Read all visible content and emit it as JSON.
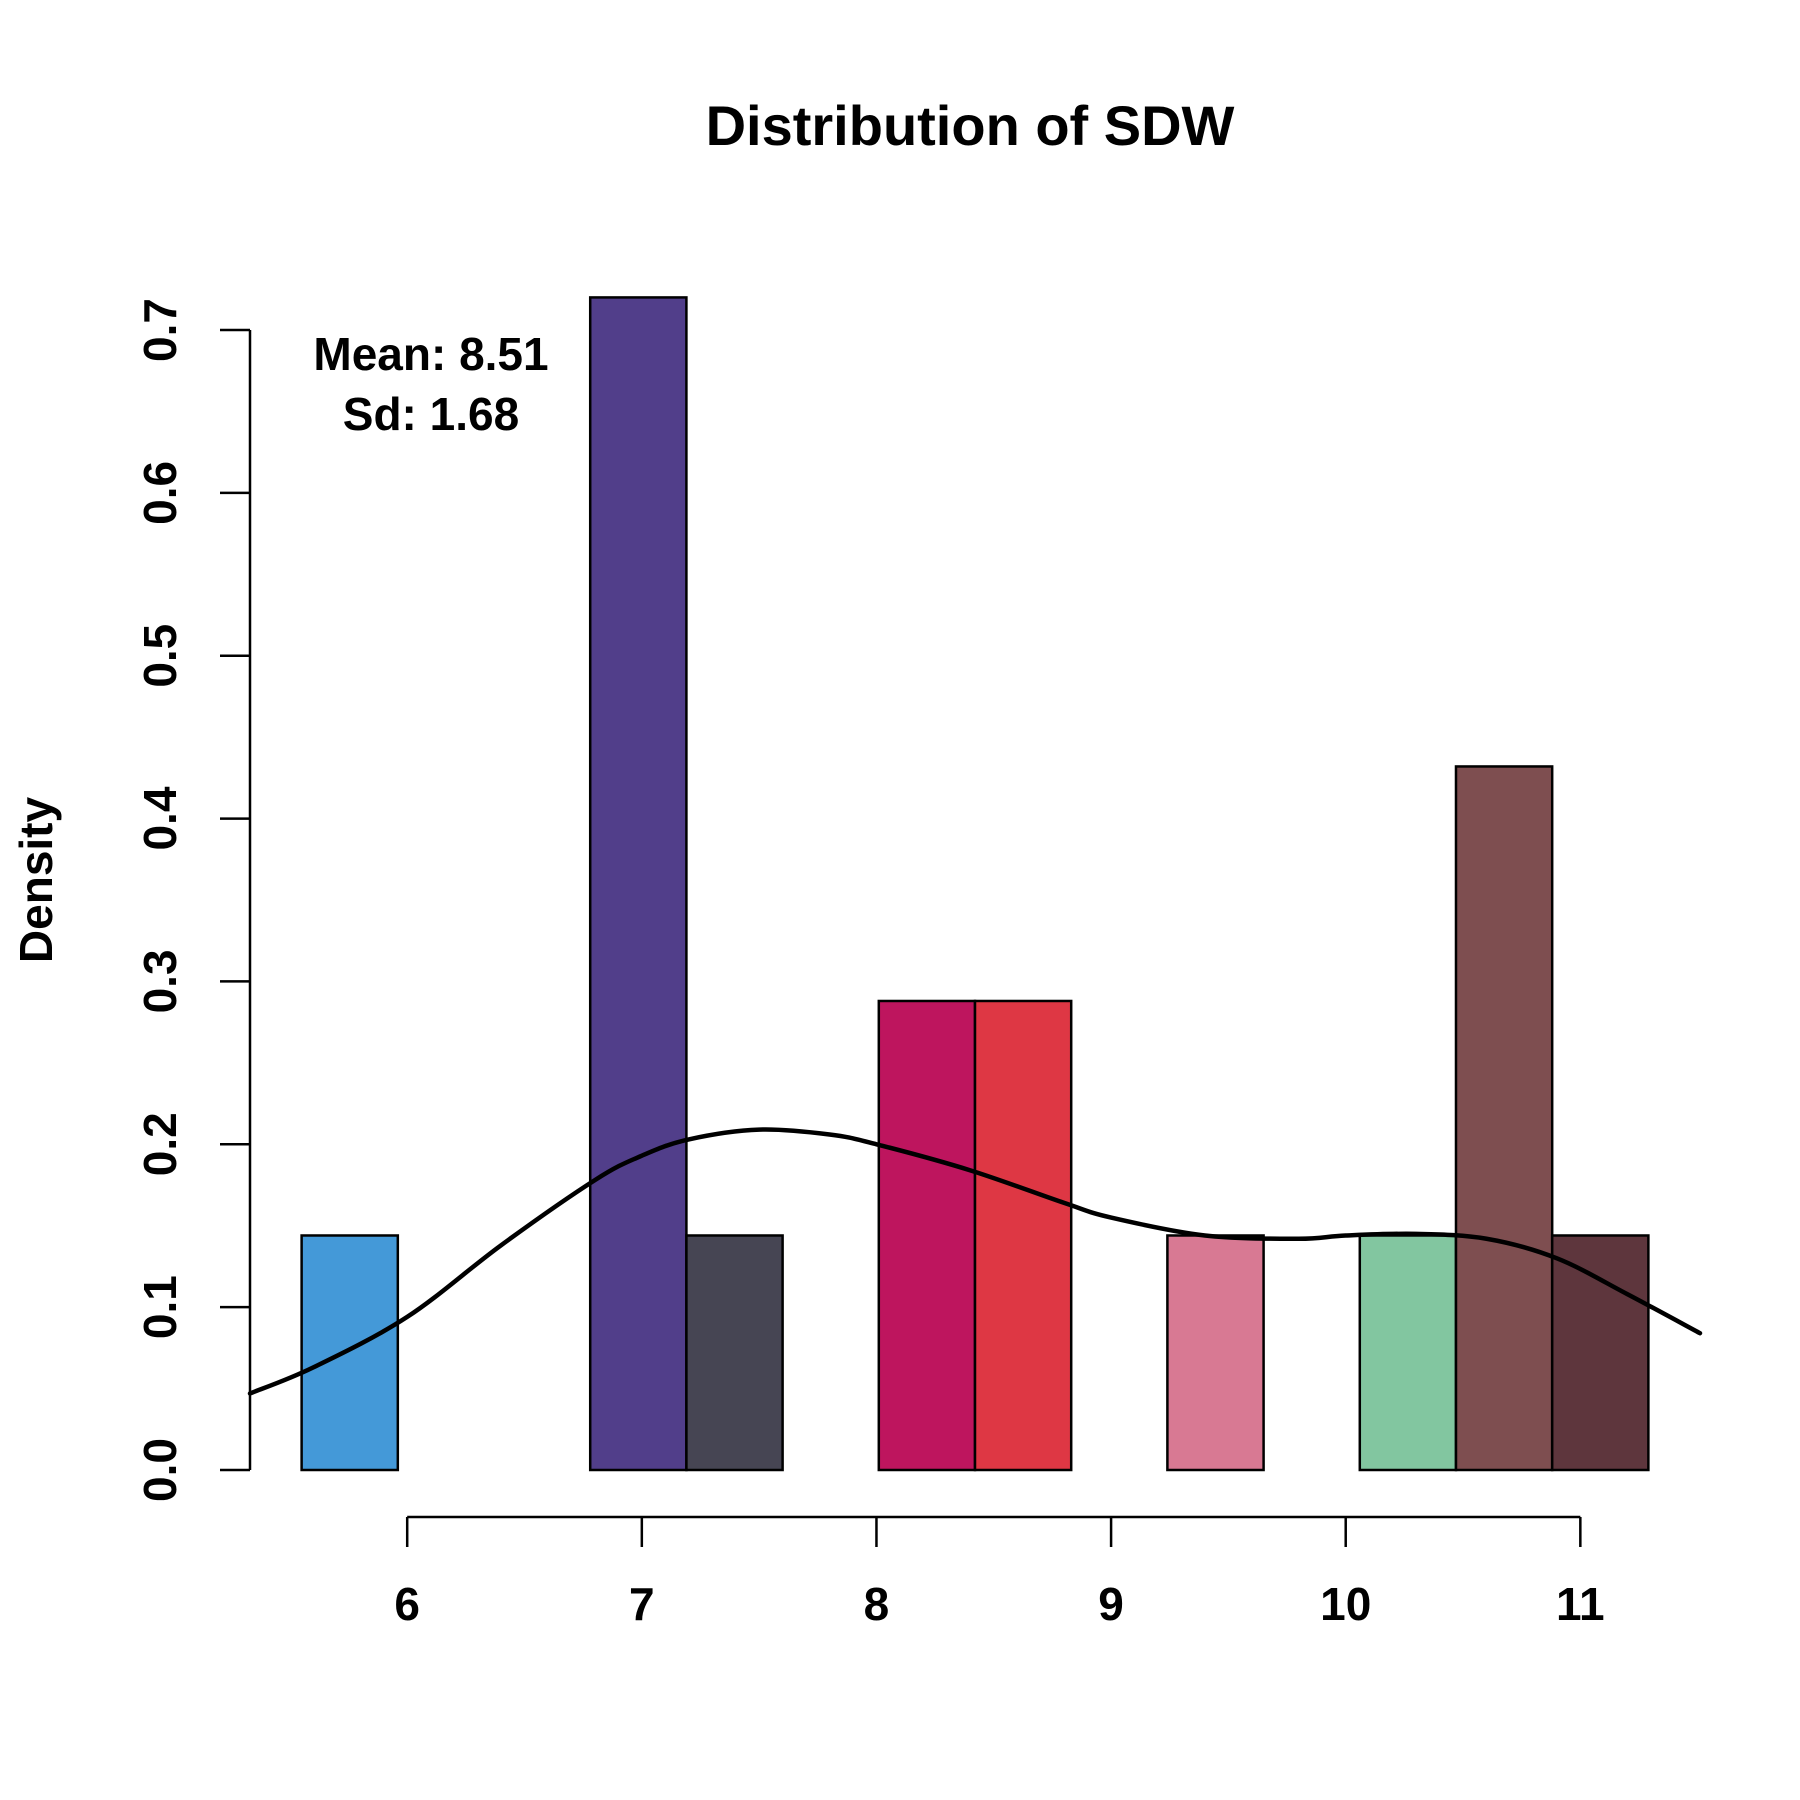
{
  "chart_data": {
    "type": "bar",
    "title": "Distribution of SDW",
    "xlabel": "",
    "ylabel": "Density",
    "xlim": [
      5.33,
      11.51
    ],
    "ylim": [
      0,
      0.7
    ],
    "x_ticks": [
      6,
      7,
      8,
      9,
      10,
      11
    ],
    "y_ticks": [
      0.0,
      0.1,
      0.2,
      0.3,
      0.4,
      0.5,
      0.6,
      0.7
    ],
    "grid": false,
    "annotations": {
      "mean": "Mean: 8.51",
      "sd": "Sd: 1.68"
    },
    "bins": [
      {
        "x0": 5.55,
        "x1": 5.96,
        "density": 0.144,
        "color": "#4499D8"
      },
      {
        "x0": 6.78,
        "x1": 7.19,
        "density": 0.72,
        "color": "#513E8A"
      },
      {
        "x0": 7.19,
        "x1": 7.6,
        "density": 0.144,
        "color": "#464553"
      },
      {
        "x0": 8.01,
        "x1": 8.42,
        "density": 0.288,
        "color": "#BE155E"
      },
      {
        "x0": 8.42,
        "x1": 8.83,
        "density": 0.288,
        "color": "#DE3744"
      },
      {
        "x0": 9.24,
        "x1": 9.65,
        "density": 0.144,
        "color": "#D87993"
      },
      {
        "x0": 10.06,
        "x1": 10.47,
        "density": 0.144,
        "color": "#82C6A0"
      },
      {
        "x0": 10.47,
        "x1": 10.88,
        "density": 0.432,
        "color": "#7E4E50"
      },
      {
        "x0": 10.88,
        "x1": 11.29,
        "density": 0.144,
        "color": "#5E363D"
      }
    ],
    "density_curve": {
      "x": [
        5.33,
        5.6,
        6.0,
        6.4,
        6.8,
        7.0,
        7.2,
        7.5,
        7.8,
        8.0,
        8.4,
        8.8,
        9.0,
        9.4,
        9.8,
        10.0,
        10.3,
        10.6,
        10.9,
        11.2,
        11.51
      ],
      "y": [
        0.047,
        0.063,
        0.094,
        0.138,
        0.178,
        0.193,
        0.203,
        0.209,
        0.206,
        0.2,
        0.184,
        0.164,
        0.155,
        0.144,
        0.142,
        0.144,
        0.145,
        0.142,
        0.13,
        0.108,
        0.084
      ],
      "color": "#000000"
    }
  }
}
